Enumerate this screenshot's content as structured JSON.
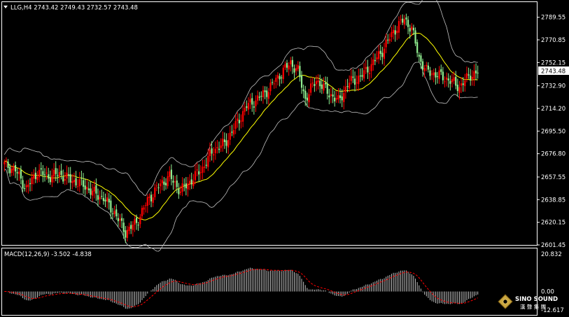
{
  "header": {
    "symbol_line": "LLG,H4  2743.42 2749.43 2732.57 2743.48"
  },
  "macd_header": "MACD(12,26,9) -3.502 -4.838",
  "watermark": {
    "brand": "SINO SOUND",
    "sub": "漢 聲 集 團"
  },
  "colors": {
    "background": "#000000",
    "bull_candle": "#ff0000",
    "bear_candle": "#90ee90",
    "bollinger": "#c0c0c0",
    "ma": "#ffff00",
    "macd_hist": "#c0c0c0",
    "macd_signal": "#ff0000",
    "axis_text": "#ffffff",
    "price_tag_bg": "#ffffff",
    "price_tag_text": "#000000"
  },
  "chart_data": [
    {
      "type": "candlestick",
      "title": "LLG,H4",
      "ylim": [
        2601.45,
        2798
      ],
      "y_ticks": [
        "2789.55",
        "2770.85",
        "2752.15",
        "2732.90",
        "2714.20",
        "2695.50",
        "2676.80",
        "2657.55",
        "2638.85",
        "2620.15",
        "2601.45"
      ],
      "current_price": "2743.48",
      "close_anchors": [
        [
          0,
          2668
        ],
        [
          6,
          2663
        ],
        [
          12,
          2648
        ],
        [
          18,
          2662
        ],
        [
          24,
          2658
        ],
        [
          30,
          2660
        ],
        [
          36,
          2655
        ],
        [
          42,
          2652
        ],
        [
          48,
          2645
        ],
        [
          54,
          2640
        ],
        [
          60,
          2628
        ],
        [
          66,
          2612
        ],
        [
          72,
          2620
        ],
        [
          78,
          2638
        ],
        [
          84,
          2650
        ],
        [
          90,
          2658
        ],
        [
          96,
          2646
        ],
        [
          102,
          2655
        ],
        [
          108,
          2665
        ],
        [
          114,
          2680
        ],
        [
          120,
          2685
        ],
        [
          126,
          2700
        ],
        [
          132,
          2716
        ],
        [
          138,
          2722
        ],
        [
          144,
          2730
        ],
        [
          150,
          2742
        ],
        [
          156,
          2752
        ],
        [
          160,
          2745
        ],
        [
          164,
          2722
        ],
        [
          170,
          2738
        ],
        [
          176,
          2728
        ],
        [
          182,
          2720
        ],
        [
          188,
          2736
        ],
        [
          194,
          2740
        ],
        [
          200,
          2750
        ],
        [
          206,
          2762
        ],
        [
          212,
          2778
        ],
        [
          218,
          2788
        ],
        [
          222,
          2780
        ],
        [
          226,
          2756
        ],
        [
          230,
          2745
        ],
        [
          236,
          2742
        ],
        [
          242,
          2738
        ],
        [
          248,
          2732
        ],
        [
          254,
          2742
        ],
        [
          258,
          2743.48
        ]
      ]
    },
    {
      "type": "bar",
      "title": "MACD(12,26,9)",
      "values_text": [
        "-3.502",
        "-4.838"
      ],
      "ylim": [
        -12.617,
        20.832
      ],
      "y_ticks": [
        "20.832",
        "0.00",
        "-12.617"
      ]
    }
  ]
}
